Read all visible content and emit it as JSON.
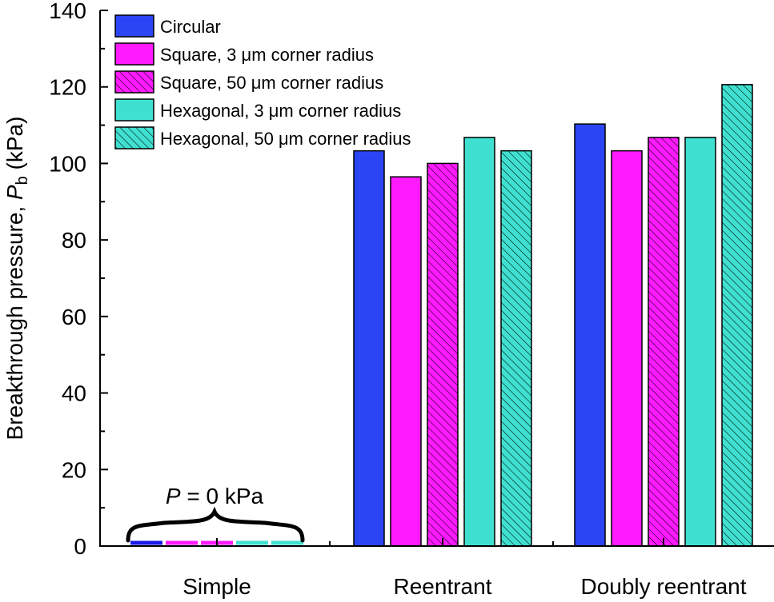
{
  "chart_data": {
    "type": "bar",
    "categories": [
      "Simple",
      "Reentrant",
      "Doubly reentrant"
    ],
    "series": [
      {
        "name": "Circular",
        "fill": "#2b45f5",
        "hatched": false,
        "values": [
          0,
          103.3,
          110.3
        ]
      },
      {
        "name": "Square, 3 μm corner radius",
        "fill": "#ff1aff",
        "hatched": false,
        "values": [
          0,
          96.5,
          103.3
        ]
      },
      {
        "name": "Square, 50 μm corner radius",
        "fill": "#ff1aff",
        "hatched": true,
        "values": [
          0,
          100.0,
          106.8
        ]
      },
      {
        "name": "Hexagonal, 3 μm corner radius",
        "fill": "#40e0d0",
        "hatched": false,
        "values": [
          0,
          106.8,
          106.8
        ]
      },
      {
        "name": "Hexagonal, 50 μm corner radius",
        "fill": "#40e0d0",
        "hatched": true,
        "values": [
          0,
          103.3,
          120.6
        ]
      }
    ],
    "simple_marker_colors": [
      "#1a1ae6",
      "#ff1aff",
      "#ff1aff",
      "#40e0d0",
      "#40e0d0"
    ],
    "xlabel": "",
    "ylabel": {
      "prefix": "Breakthrough pressure, ",
      "symbol": "P",
      "subscript": "b",
      "suffix": " (kPa)"
    },
    "ylim": [
      0,
      140
    ],
    "yticks": [
      0,
      20,
      40,
      60,
      80,
      100,
      120,
      140
    ],
    "y_minor_step": 10,
    "annotation": {
      "symbol": "P",
      "text": " = 0 kPa"
    },
    "legend_position": "top-left",
    "grid": false
  }
}
